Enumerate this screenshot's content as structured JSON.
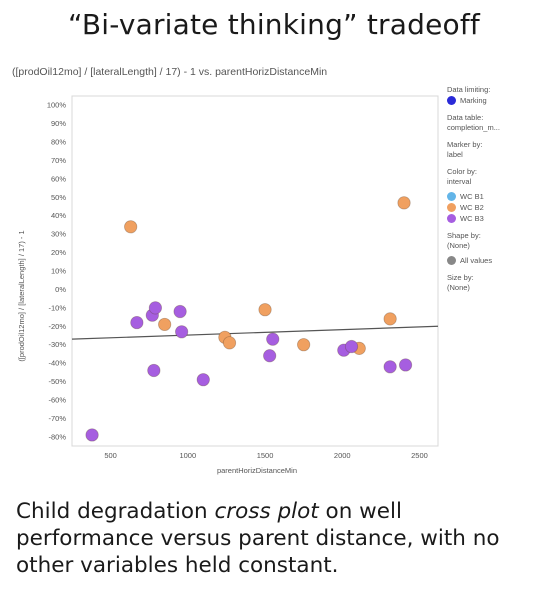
{
  "slide": {
    "title": "“Bi-variate thinking” tradeoff",
    "caption_before": "Child degradation ",
    "caption_em": "cross plot",
    "caption_after": " on well performance versus parent distance, with no other variables held constant."
  },
  "legend": {
    "data_limiting_title": "Data limiting:",
    "marking_label": "Marking",
    "marking_color": "#2a2ad8",
    "data_table_title": "Data table:",
    "data_table_value": "completion_m...",
    "marker_by_title": "Marker by:",
    "marker_by_value": "label",
    "color_by_title": "Color by:",
    "color_by_value": "interval",
    "color_items": [
      {
        "label": "WC B1",
        "color": "#63b5e8"
      },
      {
        "label": "WC B2",
        "color": "#f0a060"
      },
      {
        "label": "WC B3",
        "color": "#a65ee0"
      }
    ],
    "shape_by_title": "Shape by:",
    "shape_by_value": "(None)",
    "all_values_label": "All values",
    "all_values_color": "#888888",
    "size_by_title": "Size by:",
    "size_by_value": "(None)"
  },
  "chart_data": {
    "type": "scatter",
    "title": "([prodOil12mo] / [lateralLength] / 17) - 1 vs. parentHorizDistanceMin",
    "xlabel": "parentHorizDistanceMin",
    "ylabel": "([prodOil12mo] / [lateralLength] / 17) - 1",
    "xlim": [
      250,
      2620
    ],
    "ylim": [
      -85,
      105
    ],
    "x_ticks": [
      500,
      1000,
      1500,
      2000,
      2500
    ],
    "y_ticks": [
      100,
      90,
      80,
      70,
      60,
      50,
      40,
      30,
      20,
      10,
      0,
      -10,
      -20,
      -30,
      -40,
      -50,
      -60,
      -70,
      -80
    ],
    "y_tick_suffix": "%",
    "trend_line": {
      "x": [
        250,
        2620
      ],
      "y": [
        -27,
        -20
      ]
    },
    "series": [
      {
        "name": "WC B2",
        "color": "#f0a060",
        "points": [
          {
            "x": 630,
            "y": 34
          },
          {
            "x": 850,
            "y": -19
          },
          {
            "x": 1240,
            "y": -26
          },
          {
            "x": 1270,
            "y": -29
          },
          {
            "x": 1500,
            "y": -11
          },
          {
            "x": 1750,
            "y": -30
          },
          {
            "x": 2110,
            "y": -32
          },
          {
            "x": 2310,
            "y": -16
          },
          {
            "x": 2400,
            "y": 47
          }
        ]
      },
      {
        "name": "WC B3",
        "color": "#a65ee0",
        "points": [
          {
            "x": 380,
            "y": -79
          },
          {
            "x": 670,
            "y": -18
          },
          {
            "x": 770,
            "y": -14
          },
          {
            "x": 790,
            "y": -10
          },
          {
            "x": 780,
            "y": -44
          },
          {
            "x": 950,
            "y": -12
          },
          {
            "x": 960,
            "y": -23
          },
          {
            "x": 1100,
            "y": -49
          },
          {
            "x": 1530,
            "y": -36
          },
          {
            "x": 1550,
            "y": -27
          },
          {
            "x": 2010,
            "y": -33
          },
          {
            "x": 2060,
            "y": -31
          },
          {
            "x": 2310,
            "y": -42
          },
          {
            "x": 2410,
            "y": -41
          }
        ]
      }
    ]
  }
}
